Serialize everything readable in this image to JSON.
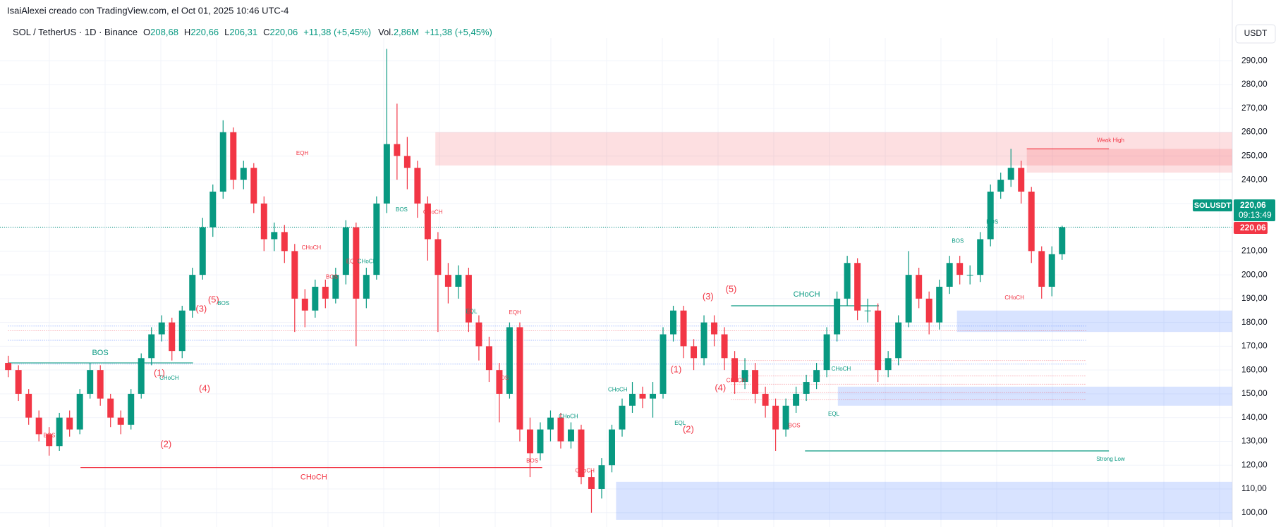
{
  "chart_data": {
    "type": "candlestick",
    "credit": "IsaiAlexei creado con TradingView.com, el Oct 01, 2025 10:46 UTC-4",
    "legend": {
      "symbol": "SOL / TetherUS · 1D · Binance",
      "o_key": "O",
      "open": "208,68",
      "h_key": "H",
      "high": "220,66",
      "l_key": "L",
      "low": "206,31",
      "c_key": "C",
      "close": "220,06",
      "change": "+11,38 (+5,45%)",
      "vol_key": "Vol.",
      "volume": "2,86M",
      "vol_change": "+11,38 (+5,45%)"
    },
    "currency": "USDT",
    "price_tags": {
      "symbol": "SOLUSDT",
      "price": "220,06",
      "countdown": "09:13:49",
      "last": "220,06"
    },
    "up_color": "#089981",
    "down_color": "#f23645",
    "open": [
      163,
      160,
      150,
      140,
      133,
      128,
      140,
      135,
      150,
      160,
      148,
      140,
      137,
      150,
      165,
      175,
      180,
      168,
      185,
      200,
      220,
      235,
      260,
      240,
      245,
      230,
      215,
      218,
      210,
      190,
      185,
      195,
      190,
      200,
      220,
      190,
      200,
      230,
      255,
      250,
      245,
      230,
      215,
      200,
      195,
      200,
      180,
      170,
      160,
      150,
      178,
      135,
      125,
      135,
      140,
      130,
      135,
      115,
      110,
      120,
      135,
      145,
      150,
      148,
      150,
      175,
      185,
      170,
      165,
      180,
      175,
      165,
      155,
      160,
      150,
      145,
      135,
      145,
      150,
      155,
      160,
      175,
      190,
      205,
      185,
      185,
      160,
      165,
      180,
      200,
      190,
      180,
      195,
      205,
      200,
      200,
      215,
      235,
      240,
      245,
      235,
      210,
      195,
      208.68
    ],
    "high": [
      166,
      162,
      152,
      143,
      136,
      142,
      143,
      152,
      163,
      162,
      150,
      143,
      152,
      167,
      178,
      183,
      182,
      187,
      203,
      224,
      238,
      265,
      262,
      248,
      247,
      233,
      222,
      221,
      213,
      194,
      198,
      198,
      203,
      223,
      222,
      203,
      233,
      295,
      272,
      258,
      248,
      233,
      218,
      205,
      204,
      203,
      183,
      174,
      163,
      180,
      180,
      140,
      138,
      143,
      142,
      138,
      137,
      118,
      123,
      137,
      148,
      155,
      153,
      155,
      178,
      187,
      187,
      173,
      183,
      183,
      178,
      168,
      165,
      163,
      153,
      148,
      148,
      153,
      158,
      163,
      178,
      193,
      208,
      207,
      190,
      188,
      168,
      183,
      210,
      203,
      193,
      198,
      208,
      208,
      204,
      218,
      238,
      243,
      253,
      248,
      237,
      212,
      212,
      220.66
    ],
    "low": [
      157,
      147,
      137,
      130,
      124,
      126,
      132,
      133,
      148,
      145,
      136,
      133,
      135,
      148,
      162,
      172,
      164,
      165,
      182,
      198,
      216,
      232,
      236,
      236,
      226,
      210,
      210,
      205,
      176,
      178,
      182,
      186,
      188,
      196,
      170,
      186,
      198,
      226,
      240,
      236,
      224,
      206,
      176,
      188,
      190,
      176,
      164,
      155,
      138,
      148,
      130,
      115,
      122,
      130,
      127,
      127,
      112,
      100,
      106,
      117,
      132,
      142,
      144,
      140,
      148,
      172,
      165,
      160,
      162,
      170,
      160,
      150,
      152,
      146,
      140,
      126,
      132,
      142,
      147,
      152,
      157,
      172,
      187,
      181,
      180,
      155,
      157,
      162,
      178,
      186,
      175,
      177,
      192,
      196,
      196,
      197,
      212,
      232,
      237,
      230,
      205,
      190,
      191,
      206.31
    ],
    "close": [
      160,
      150,
      140,
      133,
      128,
      140,
      135,
      150,
      160,
      148,
      140,
      137,
      150,
      165,
      175,
      180,
      168,
      185,
      200,
      220,
      235,
      260,
      240,
      245,
      230,
      215,
      218,
      210,
      190,
      185,
      195,
      190,
      200,
      220,
      190,
      200,
      230,
      255,
      250,
      245,
      230,
      215,
      200,
      195,
      200,
      180,
      170,
      160,
      150,
      178,
      135,
      125,
      135,
      140,
      130,
      135,
      115,
      110,
      120,
      135,
      145,
      150,
      148,
      150,
      175,
      185,
      170,
      165,
      180,
      175,
      165,
      155,
      160,
      150,
      145,
      135,
      145,
      150,
      155,
      160,
      175,
      190,
      205,
      185,
      185,
      160,
      165,
      180,
      200,
      190,
      180,
      195,
      205,
      200,
      200,
      215,
      235,
      240,
      245,
      235,
      210,
      195,
      208.68,
      220.06
    ],
    "ylim": [
      94,
      296.6
    ],
    "yticks": [
      {
        "value": 100,
        "label": "100,00"
      },
      {
        "value": 110,
        "label": "110,00"
      },
      {
        "value": 120,
        "label": "120,00"
      },
      {
        "value": 130,
        "label": "130,00"
      },
      {
        "value": 140,
        "label": "140,00"
      },
      {
        "value": 150,
        "label": "150,00"
      },
      {
        "value": 160,
        "label": "160,00"
      },
      {
        "value": 170,
        "label": "170,00"
      },
      {
        "value": 180,
        "label": "180,00"
      },
      {
        "value": 190,
        "label": "190,00"
      },
      {
        "value": 200,
        "label": "200,00"
      },
      {
        "value": 210,
        "label": "210,00"
      },
      {
        "value": 220,
        "label": "220,00"
      },
      {
        "value": 230,
        "label": "230,00"
      },
      {
        "value": 240,
        "label": "240,00"
      },
      {
        "value": 250,
        "label": "250,00"
      },
      {
        "value": 260,
        "label": "260,00"
      },
      {
        "value": 270,
        "label": "270,00"
      },
      {
        "value": 280,
        "label": "280,00"
      },
      {
        "value": 290,
        "label": "290,00"
      }
    ],
    "grid": true,
    "zones": [
      {
        "top": 260,
        "bottom": 246,
        "color": "rgba(242,54,69,0.16)"
      },
      {
        "top": 253,
        "bottom": 243,
        "color": "rgba(242,54,69,0.16)"
      },
      {
        "top": 185,
        "bottom": 176,
        "color": "rgba(41,98,255,0.18)"
      },
      {
        "top": 153,
        "bottom": 145,
        "color": "rgba(41,98,255,0.18)"
      },
      {
        "top": 113,
        "bottom": 97,
        "color": "rgba(41,98,255,0.18)"
      }
    ],
    "levels": [
      {
        "label": "BOS",
        "value": 163,
        "color": "#089981"
      },
      {
        "label": "CHoCH",
        "value": 119,
        "color": "#f23645"
      },
      {
        "label": "CHoCH",
        "value": 187,
        "color": "#089981"
      },
      {
        "label": "Strong Low",
        "value": 126,
        "color": "#089981"
      },
      {
        "label": "Weak High",
        "value": 253,
        "color": "#f23645"
      }
    ],
    "guides": [
      {
        "value": 178.5,
        "color": "#2962ff"
      },
      {
        "value": 172.5,
        "color": "#2962ff"
      },
      {
        "value": 162.5,
        "color": "#2962ff"
      },
      {
        "value": 176.5,
        "color": "#f23645"
      },
      {
        "value": 164,
        "color": "#f23645"
      },
      {
        "value": 157.5,
        "color": "#f23645"
      },
      {
        "value": 154,
        "color": "#f23645"
      },
      {
        "value": 150.5,
        "color": "#f23645"
      },
      {
        "value": 147.5,
        "color": "#f23645"
      }
    ],
    "annotations": [
      {
        "text": "BOS",
        "color": "#f23645"
      },
      {
        "text": "(1)",
        "color": "#f23645"
      },
      {
        "text": "(2)",
        "color": "#f23645"
      },
      {
        "text": "(3)",
        "color": "#f23645"
      },
      {
        "text": "(4)",
        "color": "#f23645"
      },
      {
        "text": "(5)",
        "color": "#f23645"
      },
      {
        "text": "CHoCH",
        "color": "#089981"
      },
      {
        "text": "BOS",
        "color": "#089981"
      },
      {
        "text": "EQH",
        "color": "#f23645"
      },
      {
        "text": "CHoCH",
        "color": "#f23645"
      },
      {
        "text": "BOS",
        "color": "#f23645"
      },
      {
        "text": "EQH",
        "color": "#f23645"
      },
      {
        "text": "CHoCH",
        "color": "#089981"
      },
      {
        "text": "BOS",
        "color": "#089981"
      },
      {
        "text": "CHoCH",
        "color": "#f23645"
      },
      {
        "text": "EQL",
        "color": "#089981"
      },
      {
        "text": "EQH",
        "color": "#f23645"
      },
      {
        "text": "BOS",
        "color": "#f23645"
      },
      {
        "text": "BOS",
        "color": "#f23645"
      },
      {
        "text": "CHoCH",
        "color": "#089981"
      },
      {
        "text": "CHoCH",
        "color": "#f23645"
      },
      {
        "text": "CHoCH",
        "color": "#089981"
      },
      {
        "text": "(1)",
        "color": "#f23645"
      },
      {
        "text": "(2)",
        "color": "#f23645"
      },
      {
        "text": "(3)",
        "color": "#f23645"
      },
      {
        "text": "(4)",
        "color": "#f23645"
      },
      {
        "text": "(5)",
        "color": "#f23645"
      },
      {
        "text": "EQL",
        "color": "#089981"
      },
      {
        "text": "CHoCH",
        "color": "#f23645"
      },
      {
        "text": "BOS",
        "color": "#f23645"
      },
      {
        "text": "EQL",
        "color": "#089981"
      },
      {
        "text": "CHoCH",
        "color": "#089981"
      },
      {
        "text": "BOS",
        "color": "#089981"
      },
      {
        "text": "BOS",
        "color": "#089981"
      },
      {
        "text": "CHoCH",
        "color": "#f23645"
      }
    ]
  }
}
